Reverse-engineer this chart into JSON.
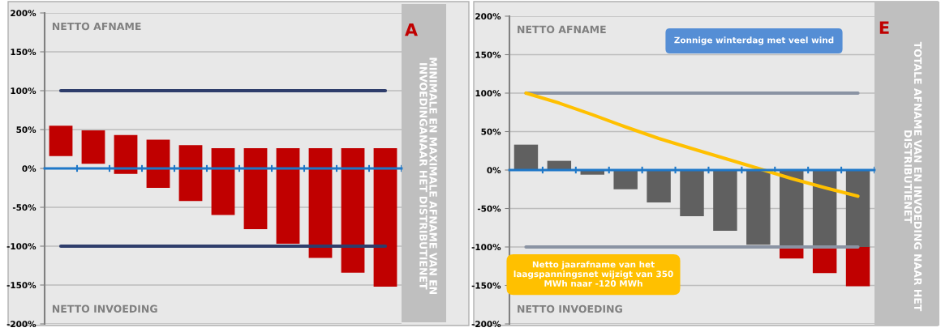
{
  "chart_data": [
    {
      "type": "bar",
      "title": "A",
      "y2label": "MINIMALE EN MAXIMALE AFNAME VAN EN\nINVOEDINGANAAR HET DISTRIBUTIENET",
      "categories": [
        null,
        null,
        null,
        null,
        null,
        null,
        null,
        null,
        null,
        null,
        null
      ],
      "series": [
        {
          "color": "#c00000",
          "values": [
            39,
            43,
            50,
            62,
            72,
            86,
            104,
            123,
            141,
            160,
            178
          ],
          "base": [
            16,
            6,
            -7,
            -25,
            -42,
            -60,
            -78,
            -97,
            -115,
            -134,
            -152
          ]
        },
        {
          "type": "line",
          "color": "#2e3d6b",
          "values": [
            100,
            100,
            100,
            100,
            100,
            100,
            100,
            100,
            100,
            100,
            100
          ]
        },
        {
          "type": "line",
          "color": "#2e3d6b",
          "values": [
            -100,
            -100,
            -100,
            -100,
            -100,
            -100,
            -100,
            -100,
            -100,
            -100,
            -100
          ]
        }
      ],
      "ylim": [
        -200,
        200
      ],
      "yticks": [
        {
          "value": -200,
          "label": "-200%"
        },
        {
          "value": -150,
          "label": "-150%"
        },
        {
          "value": -100,
          "label": "-100%"
        },
        {
          "value": -50,
          "label": "-50%"
        },
        {
          "value": 0,
          "label": "0%"
        },
        {
          "value": 50,
          "label": "50%"
        },
        {
          "value": 100,
          "label": "100%"
        },
        {
          "value": 150,
          "label": "150%"
        },
        {
          "value": 200,
          "label": "200%"
        }
      ],
      "ref_lines": [
        {
          "axis": "y",
          "value": 0,
          "color": "#1f78c8"
        }
      ],
      "annotations": [
        "NETTO AFNAME",
        "NETTO INVOEDING"
      ],
      "grid": "y",
      "tick_labels": "y"
    },
    {
      "type": "bar",
      "title": "E",
      "y2label": "TOTALE AFNAME VAN EN INVOEDING NAAR HET\nDISTRIBUTIENET",
      "categories": [
        null,
        null,
        null,
        null,
        null,
        null,
        null,
        null,
        null,
        null,
        null
      ],
      "stacked": true,
      "series": [
        {
          "color": "#606060",
          "values": [
            33,
            12,
            -6,
            -25,
            -42,
            -60,
            -79,
            -97,
            -100,
            -100,
            -100
          ]
        },
        {
          "color": "#c00000",
          "values": [
            null,
            null,
            null,
            null,
            null,
            null,
            null,
            null,
            -15,
            -34,
            -51
          ]
        },
        {
          "type": "line",
          "color": "#8a93a3",
          "values": [
            100,
            100,
            100,
            100,
            100,
            100,
            100,
            100,
            100,
            100,
            100
          ]
        },
        {
          "type": "line",
          "color": "#8a93a3",
          "values": [
            -100,
            -100,
            -100,
            -100,
            -100,
            -100,
            -100,
            -100,
            -100,
            -100,
            -100
          ]
        },
        {
          "type": "line",
          "color": "#ffc000",
          "values": [
            100,
            87,
            72,
            56,
            41,
            28,
            15,
            2,
            -11,
            -23,
            -34
          ]
        }
      ],
      "ylim": [
        -200,
        200
      ],
      "yticks": [
        {
          "value": -200,
          "label": "-200%"
        },
        {
          "value": -150,
          "label": "-150%"
        },
        {
          "value": -100,
          "label": "-100%"
        },
        {
          "value": -50,
          "label": "-50%"
        },
        {
          "value": 0,
          "label": "0%"
        },
        {
          "value": 50,
          "label": "50%"
        },
        {
          "value": 100,
          "label": "100%"
        },
        {
          "value": 150,
          "label": "150%"
        },
        {
          "value": 200,
          "label": "200%"
        }
      ],
      "ref_lines": [
        {
          "axis": "y",
          "value": 0,
          "color": "#1f78c8"
        }
      ],
      "annotations": [
        "NETTO AFNAME",
        "NETTO INVOEDING",
        "Zonnige winterdag met veel wind",
        "Netto jaarafname van het\nlaagspanningsnet wijzigt van 350\nMWh naar -120 MWh"
      ],
      "grid": "y",
      "tick_labels": "y"
    }
  ]
}
